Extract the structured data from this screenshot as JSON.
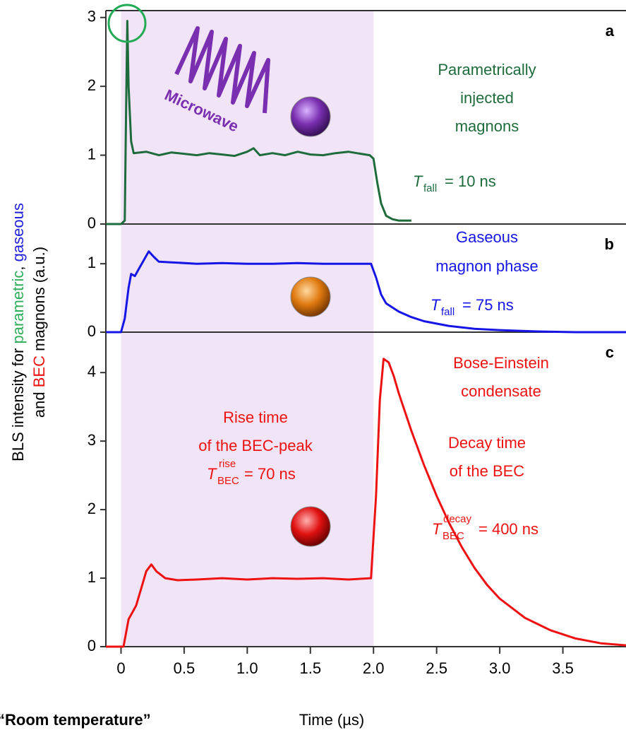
{
  "figure": {
    "y_label": [
      [
        {
          "text": "BLS intensity for "
        },
        {
          "text": "parametric",
          "color": "#2fae5b"
        },
        {
          "text": ", "
        },
        {
          "text": "gaseous",
          "color": "#2222dd"
        }
      ],
      [
        {
          "text": "and "
        },
        {
          "text": "BEC",
          "color": "#ee1111"
        },
        {
          "text": " magnons (a.u.)"
        }
      ]
    ],
    "note": "“Room temperature”"
  },
  "chart_data": [
    {
      "type": "line",
      "panel": "a",
      "color": "#1e6b3c",
      "span": [
        0,
        2
      ],
      "xlim": [
        -0.12,
        4.0
      ],
      "ylim": [
        0,
        3.1
      ],
      "yticks": [
        0,
        1,
        2,
        3
      ],
      "pump_label": "Microwave",
      "annotations": [
        [
          "Parametrically",
          "injected",
          "magnons"
        ]
      ],
      "formulas": [
        {
          "symbol": "T",
          "sub": "fall",
          "text": "= 10 ns"
        }
      ],
      "x": [
        -0.12,
        0.0,
        0.03,
        0.04,
        0.05,
        0.06,
        0.08,
        0.1,
        0.2,
        0.3,
        0.4,
        0.5,
        0.6,
        0.7,
        0.8,
        0.9,
        1.0,
        1.05,
        1.1,
        1.2,
        1.3,
        1.4,
        1.5,
        1.6,
        1.7,
        1.8,
        1.9,
        1.97,
        2.0,
        2.03,
        2.06,
        2.1,
        2.15,
        2.2,
        2.3
      ],
      "values": [
        0,
        0,
        0.05,
        1.6,
        2.95,
        2.0,
        1.2,
        1.03,
        1.05,
        1.0,
        1.04,
        1.02,
        1.0,
        1.03,
        1.01,
        0.99,
        1.05,
        1.1,
        1.0,
        1.03,
        1.0,
        1.05,
        1.01,
        1.0,
        1.03,
        1.05,
        1.02,
        1.0,
        0.95,
        0.6,
        0.3,
        0.12,
        0.07,
        0.05,
        0.05
      ]
    },
    {
      "type": "line",
      "panel": "b",
      "color": "#1515e6",
      "span": [
        0,
        2
      ],
      "xlim": [
        -0.12,
        4.0
      ],
      "ylim": [
        0,
        1.58
      ],
      "yticks": [
        0,
        1
      ],
      "annotations": [
        [
          "Gaseous",
          "magnon phase"
        ]
      ],
      "formulas": [
        {
          "symbol": "T",
          "sub": "fall",
          "text": "= 75 ns"
        }
      ],
      "x": [
        -0.12,
        0.0,
        0.03,
        0.06,
        0.08,
        0.11,
        0.14,
        0.18,
        0.22,
        0.26,
        0.3,
        0.4,
        0.6,
        0.8,
        1.0,
        1.2,
        1.4,
        1.6,
        1.8,
        1.98,
        2.02,
        2.06,
        2.1,
        2.2,
        2.3,
        2.4,
        2.6,
        2.8,
        3.0,
        3.3,
        3.6,
        4.0
      ],
      "values": [
        0,
        0,
        0.2,
        0.65,
        0.85,
        0.82,
        0.92,
        1.05,
        1.18,
        1.1,
        1.03,
        1.02,
        1.0,
        1.01,
        1.0,
        1.0,
        1.01,
        1.0,
        1.0,
        1.0,
        0.8,
        0.55,
        0.42,
        0.3,
        0.22,
        0.16,
        0.09,
        0.05,
        0.03,
        0.01,
        0.0,
        0.0
      ]
    },
    {
      "type": "line",
      "panel": "c",
      "color": "#ee1111",
      "span": [
        0,
        2
      ],
      "xlim": [
        -0.12,
        4.0
      ],
      "ylim": [
        0,
        4.59
      ],
      "yticks": [
        0,
        1,
        2,
        3,
        4
      ],
      "xticks": [
        0,
        0.5,
        {
          "value": 1,
          "label": "1.0"
        },
        1.5,
        {
          "value": 2,
          "label": "2.0"
        },
        2.5,
        {
          "value": 3,
          "label": "3.0"
        },
        3.5
      ],
      "x_label": "Time (µs)",
      "annotations": [
        [
          "Rise time",
          "of the BEC-peak"
        ],
        [
          "Bose-Einstein",
          "condensate"
        ],
        [
          "Decay time",
          "of the BEC"
        ]
      ],
      "formulas": [
        {
          "symbol": "T",
          "sub": "BEC",
          "sup": "rise",
          "text": "= 70 ns"
        },
        {
          "symbol": "T",
          "sub": "BEC",
          "sup": "decay",
          "text": "= 400 ns"
        }
      ],
      "x": [
        -0.12,
        0.02,
        0.06,
        0.09,
        0.12,
        0.16,
        0.2,
        0.24,
        0.28,
        0.35,
        0.45,
        0.6,
        0.8,
        1.0,
        1.2,
        1.4,
        1.6,
        1.8,
        1.98,
        2.02,
        2.05,
        2.08,
        2.12,
        2.16,
        2.2,
        2.3,
        2.4,
        2.5,
        2.6,
        2.7,
        2.8,
        2.9,
        3.0,
        3.2,
        3.4,
        3.6,
        3.8,
        4.0
      ],
      "values": [
        0,
        0,
        0.4,
        0.5,
        0.6,
        0.85,
        1.1,
        1.2,
        1.1,
        1.0,
        0.97,
        0.98,
        1.0,
        0.98,
        1.0,
        0.99,
        1.0,
        0.98,
        1.0,
        2.2,
        3.6,
        4.2,
        4.15,
        3.95,
        3.7,
        3.15,
        2.65,
        2.2,
        1.8,
        1.45,
        1.15,
        0.9,
        0.7,
        0.42,
        0.24,
        0.12,
        0.05,
        0.02
      ]
    }
  ]
}
